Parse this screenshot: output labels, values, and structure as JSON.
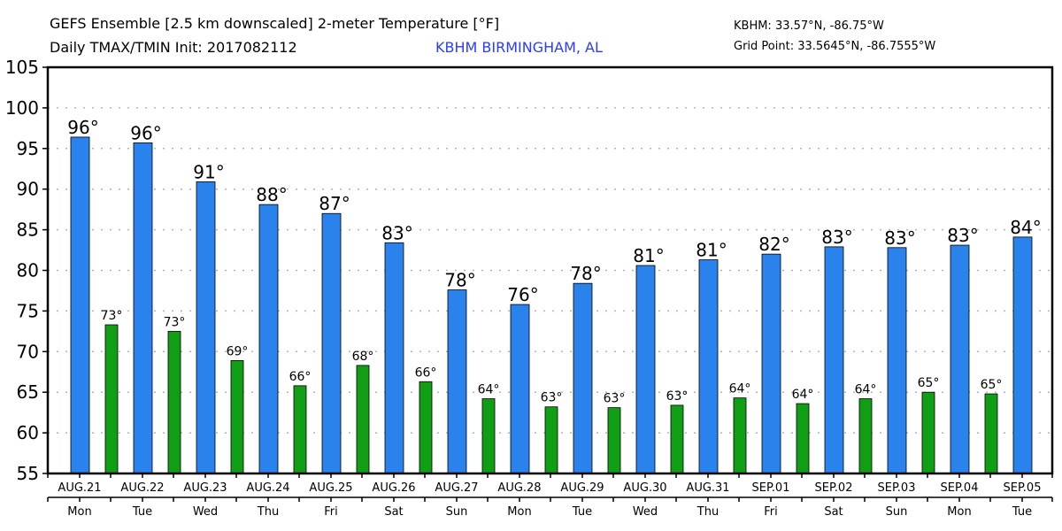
{
  "header": {
    "title_line1": "GEFS Ensemble [2.5 km downscaled] 2-meter Temperature [°F]",
    "title_line2": "Daily TMAX/TMIN Init: 2017082112",
    "station": "KBHM BIRMINGHAM, AL",
    "station_coords": "KBHM: 33.57°N, -86.75°W",
    "grid_point": "Grid Point: 33.5645°N, -86.7555°W"
  },
  "colors": {
    "tmax": "#2a82ec",
    "tmin": "#109e14",
    "station_text": "#2a3cff",
    "grid": "#b4b4b4"
  },
  "chart_data": {
    "type": "bar",
    "title": "GEFS Ensemble [2.5 km downscaled] 2-meter Temperature [°F] — Daily TMAX/TMIN Init: 2017082112",
    "xlabel": "",
    "ylabel": "",
    "ylim": [
      55,
      105
    ],
    "yticks": [
      55,
      60,
      65,
      70,
      75,
      80,
      85,
      90,
      95,
      100,
      105
    ],
    "grid": true,
    "categories": [
      "AUG.21",
      "AUG.22",
      "AUG.23",
      "AUG.24",
      "AUG.25",
      "AUG.26",
      "AUG.27",
      "AUG.28",
      "AUG.29",
      "AUG.30",
      "AUG.31",
      "SEP.01",
      "SEP.02",
      "SEP.03",
      "SEP.04",
      "SEP.05"
    ],
    "weekdays": [
      "Mon",
      "Tue",
      "Wed",
      "Thu",
      "Fri",
      "Sat",
      "Sun",
      "Mon",
      "Tue",
      "Wed",
      "Thu",
      "Fri",
      "Sat",
      "Sun",
      "Mon",
      "Tue"
    ],
    "series": [
      {
        "name": "TMAX",
        "values": [
          96.4,
          95.7,
          90.9,
          88.1,
          87.0,
          83.4,
          77.6,
          75.8,
          78.4,
          80.6,
          81.3,
          82.0,
          82.9,
          82.8,
          83.1,
          84.1
        ],
        "labels": [
          "96°",
          "96°",
          "91°",
          "88°",
          "87°",
          "83°",
          "78°",
          "76°",
          "78°",
          "81°",
          "81°",
          "82°",
          "83°",
          "83°",
          "83°",
          "84°"
        ]
      },
      {
        "name": "TMIN",
        "values": [
          73.3,
          72.5,
          68.9,
          65.8,
          68.3,
          66.3,
          64.2,
          63.2,
          63.1,
          63.4,
          64.3,
          63.6,
          64.2,
          65.0,
          64.8,
          null
        ],
        "labels": [
          "73°",
          "73°",
          "69°",
          "66°",
          "68°",
          "66°",
          "64°",
          "63°",
          "63°",
          "63°",
          "64°",
          "64°",
          "64°",
          "65°",
          "65°",
          ""
        ]
      }
    ]
  }
}
